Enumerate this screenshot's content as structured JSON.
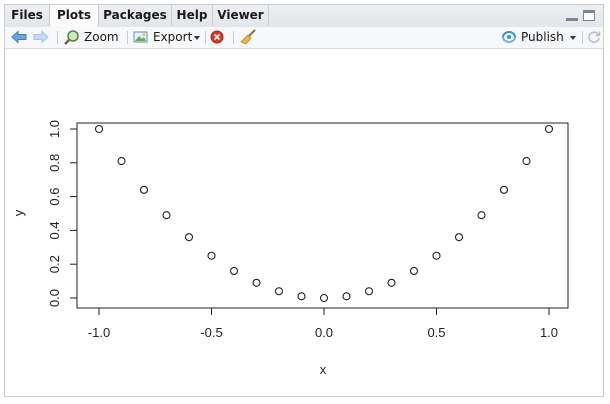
{
  "tabs": [
    {
      "label": "Files",
      "active": false
    },
    {
      "label": "Plots",
      "active": true
    },
    {
      "label": "Packages",
      "active": false
    },
    {
      "label": "Help",
      "active": false
    },
    {
      "label": "Viewer",
      "active": false
    }
  ],
  "toolbar": {
    "zoom_label": "Zoom",
    "export_label": "Export",
    "publish_label": "Publish"
  },
  "icons": {
    "back": "arrow-left-icon",
    "forward": "arrow-right-icon",
    "zoom": "magnifier-icon",
    "export": "image-export-icon",
    "remove": "remove-plot-icon",
    "clear": "broom-icon",
    "publish": "publish-icon",
    "refresh": "refresh-icon"
  },
  "colors": {
    "accent": "#3b8fd6",
    "remove": "#d33a2c"
  },
  "chart_data": {
    "type": "scatter",
    "x": [
      -1.0,
      -0.9,
      -0.8,
      -0.7,
      -0.6,
      -0.5,
      -0.4,
      -0.3,
      -0.2,
      -0.1,
      0.0,
      0.1,
      0.2,
      0.3,
      0.4,
      0.5,
      0.6,
      0.7,
      0.8,
      0.9,
      1.0
    ],
    "y": [
      1.0,
      0.81,
      0.64,
      0.49,
      0.36,
      0.25,
      0.16,
      0.09,
      0.04,
      0.01,
      0.0,
      0.01,
      0.04,
      0.09,
      0.16,
      0.25,
      0.36,
      0.49,
      0.64,
      0.81,
      1.0
    ],
    "xlabel": "x",
    "ylabel": "y",
    "xticks": [
      "-1.0",
      "-0.5",
      "0.0",
      "0.5",
      "1.0"
    ],
    "yticks": [
      "0.0",
      "0.2",
      "0.4",
      "0.6",
      "0.8",
      "1.0"
    ],
    "xlim": [
      -1.0,
      1.0
    ],
    "ylim": [
      0.0,
      1.0
    ],
    "marker": "open-circle",
    "grid": false
  }
}
